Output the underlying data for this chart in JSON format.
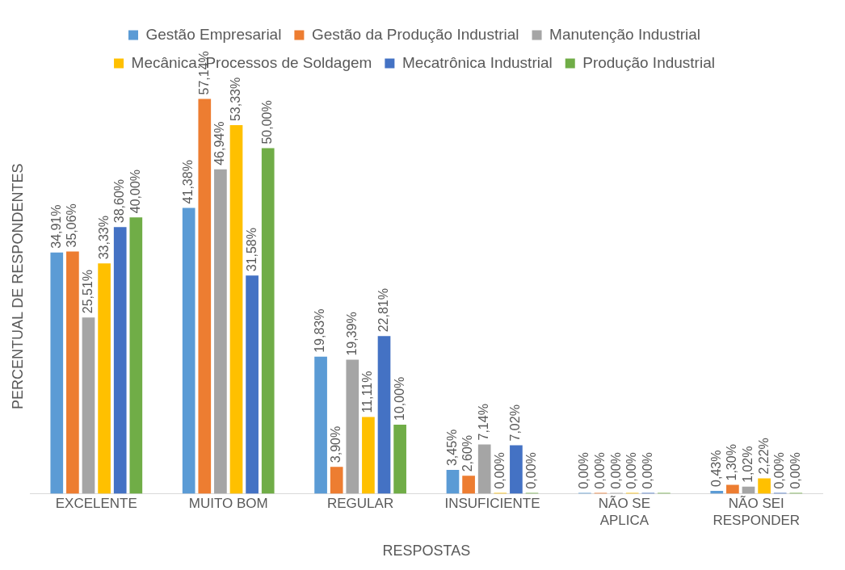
{
  "chart_data": {
    "type": "bar",
    "xlabel": "RESPOSTAS",
    "ylabel": "PERCENTUAL DE RESPONDENTES",
    "legend": "top",
    "tick_labels": "x",
    "grid": false,
    "categories": [
      "EXCELENTE",
      "MUITO BOM",
      "REGULAR",
      "INSUFICIENTE",
      "NÃO SE APLICA",
      "NÃO SEI RESPONDER"
    ],
    "series": [
      {
        "name": "Gestão Empresarial",
        "color": "#5b9bd5",
        "values": [
          34.91,
          41.38,
          19.83,
          3.45,
          0,
          0.43
        ],
        "value_labels": [
          "34,91%",
          "41,38%",
          "19,83%",
          "3,45%",
          "0,00%",
          "0,43%"
        ]
      },
      {
        "name": "Gestão da Produção Industrial",
        "color": "#ed7d31",
        "values": [
          35.06,
          57.14,
          3.9,
          2.6,
          0,
          1.3
        ],
        "value_labels": [
          "35,06%",
          "57,14%",
          "3,90%",
          "2,60%",
          "0,00%",
          "1,30%"
        ]
      },
      {
        "name": "Manutenção Industrial",
        "color": "#a5a5a5",
        "values": [
          25.51,
          46.94,
          19.39,
          7.14,
          0,
          1.02
        ],
        "value_labels": [
          "25,51%",
          "46,94%",
          "19,39%",
          "7,14%",
          "0,00%",
          "1,02%"
        ]
      },
      {
        "name": "Mecânica: Processos de Soldagem",
        "color": "#ffc000",
        "values": [
          33.33,
          53.33,
          11.11,
          0,
          0,
          2.22
        ],
        "value_labels": [
          "33,33%",
          "53,33%",
          "11,11%",
          "0,00%",
          "0,00%",
          "2,22%"
        ]
      },
      {
        "name": "Mecatrônica Industrial",
        "color": "#4472c4",
        "values": [
          38.6,
          31.58,
          22.81,
          7.02,
          0,
          0
        ],
        "value_labels": [
          "38,60%",
          "31,58%",
          "22,81%",
          "7,02%",
          "0,00%",
          "0,00%"
        ]
      },
      {
        "name": "Produção Industrial",
        "color": "#70ad47",
        "values": [
          40,
          50,
          10,
          0,
          0,
          0
        ],
        "value_labels": [
          "40,00%",
          "50,00%",
          "10,00%",
          "0,00%",
          null,
          "0,00%"
        ]
      }
    ]
  }
}
